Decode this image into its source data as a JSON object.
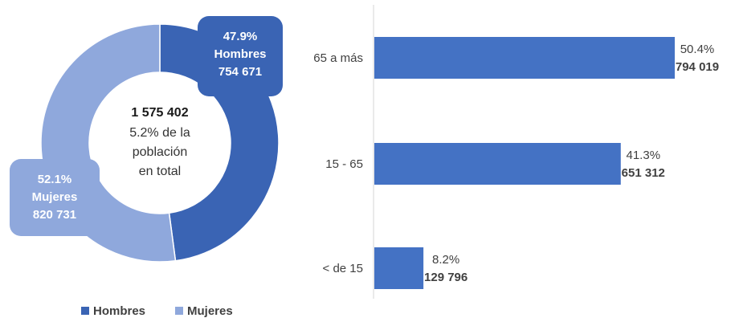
{
  "chart_data": [
    {
      "type": "pie",
      "variant": "donut",
      "center_total": "1 575 402",
      "center_lines": [
        "5.2% de la",
        "población",
        "en total"
      ],
      "slices": [
        {
          "name": "Hombres",
          "percent": 47.9,
          "percent_label": "47.9%",
          "value": 754671,
          "value_label": "754 671",
          "color": "#3a64b4"
        },
        {
          "name": "Mujeres",
          "percent": 52.1,
          "percent_label": "52.1%",
          "value": 820731,
          "value_label": "820 731",
          "color": "#8fa8dc"
        }
      ],
      "legend": {
        "placement": "bottom",
        "entries": [
          {
            "name": "Hombres",
            "color": "#3a64b4"
          },
          {
            "name": "Mujeres",
            "color": "#8fa8dc"
          }
        ]
      }
    },
    {
      "type": "bar",
      "orientation": "horizontal",
      "categories": [
        "65 a más",
        "15 - 65",
        "< de 15"
      ],
      "values": [
        794019,
        651312,
        129796
      ],
      "percents": [
        50.4,
        41.3,
        8.2
      ],
      "percent_labels": [
        "50.4%",
        "41.3%",
        "8.2%"
      ],
      "value_labels": [
        "794 019",
        "651 312",
        "129 796"
      ],
      "color": "#4472c4",
      "xlim": [
        0,
        794019
      ]
    }
  ]
}
